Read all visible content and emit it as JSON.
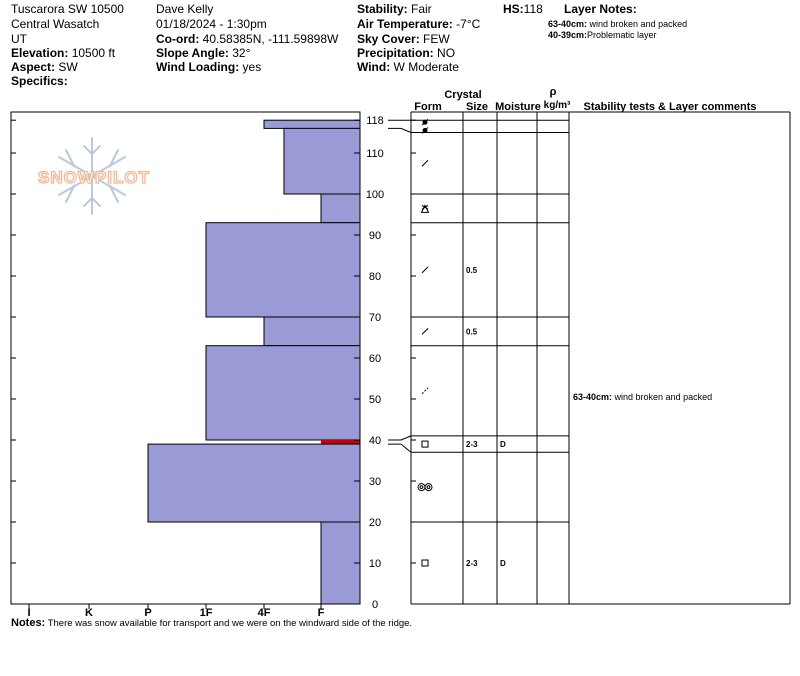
{
  "header": {
    "location": "Tuscarora SW 10500",
    "range": "Central Wasatch",
    "state": "UT",
    "elevation_label": "Elevation:",
    "elevation": " 10500 ft",
    "aspect_label": "Aspect:",
    "aspect": " SW",
    "specifics_label": "Specifics:",
    "observer": "Dave Kelly",
    "datetime": "01/18/2024 - 1:30pm",
    "coord_label": "Co-ord:",
    "coord": " 40.58385N, -111.59898W",
    "slope_label": "Slope Angle:",
    "slope": " 32°",
    "wind_loading_label": "Wind Loading:",
    "wind_loading": " yes",
    "stability_label": "Stability:",
    "stability": " Fair",
    "air_temp_label": "Air Temperature:",
    "air_temp": " -7°C",
    "sky_label": "Sky Cover:",
    "sky": " FEW",
    "precip_label": "Precipitation:",
    "precip": " NO",
    "wind_label": "Wind:",
    "wind": "  W Moderate",
    "hs_label": "HS:",
    "hs": "118",
    "layer_notes_label": "Layer Notes:",
    "layer_notes": [
      {
        "range": "63-40cm:",
        "text": " wind broken and packed"
      },
      {
        "range": "40-39cm:",
        "text": "Problematic layer"
      }
    ]
  },
  "logo": {
    "text": "SNOWPILOT"
  },
  "chart_data": {
    "type": "bar",
    "orientation": "horizontal",
    "y_axis_label": "",
    "ylim": [
      0,
      120
    ],
    "y_ticks": [
      0,
      10,
      20,
      30,
      40,
      50,
      60,
      70,
      80,
      90,
      100,
      110,
      118
    ],
    "hardness_scale": [
      "I",
      "K",
      "P",
      "1F",
      "4F",
      "F"
    ],
    "hardness_values": [
      6,
      5,
      4,
      3,
      2,
      1
    ],
    "hardness_layers": [
      {
        "bottom": 116,
        "top": 118,
        "hardness": 2.0
      },
      {
        "bottom": 100,
        "top": 116,
        "hardness": 1.65
      },
      {
        "bottom": 93,
        "top": 100,
        "hardness": 1.0
      },
      {
        "bottom": 70,
        "top": 93,
        "hardness": 3.0
      },
      {
        "bottom": 63,
        "top": 70,
        "hardness": 2.0
      },
      {
        "bottom": 40,
        "top": 63,
        "hardness": 3.0
      },
      {
        "bottom": 39,
        "top": 40,
        "hardness": 1.0,
        "problematic": true
      },
      {
        "bottom": 20,
        "top": 39,
        "hardness": 4.0
      },
      {
        "bottom": 0,
        "top": 20,
        "hardness": 1.0
      }
    ],
    "layer_boundaries": [
      0,
      20,
      37,
      41,
      63,
      70,
      93,
      100,
      115,
      118
    ],
    "boundary_marks": [
      {
        "depth": 118,
        "chart_depth": 118
      },
      {
        "depth": 115,
        "chart_depth": 116
      },
      {
        "depth": 41,
        "chart_depth": 40
      },
      {
        "depth": 37,
        "chart_depth": 39
      }
    ],
    "colors": {
      "bar": "#9a9ad6",
      "problem": "#cc0000"
    }
  },
  "table": {
    "columns": {
      "crystal": "Crystal",
      "form": "Form",
      "size": "Size",
      "moisture": "Moisture",
      "rho": "ρ",
      "density": "kg/m³",
      "comments": "Stability tests & Layer comments"
    },
    "rows": [
      {
        "depth": 117.5,
        "form_icon": "precipitation-particle-icon",
        "size": "",
        "moisture": ""
      },
      {
        "depth": 115.5,
        "form_icon": "precipitation-particle-icon",
        "size": "",
        "moisture": ""
      },
      {
        "depth": 107.5,
        "form_icon": "decomposing-fragment-icon",
        "size": "",
        "moisture": ""
      },
      {
        "depth": 96.5,
        "form_icon": "surface-hoar-icon",
        "size": "",
        "moisture": ""
      },
      {
        "depth": 81.5,
        "form_icon": "decomposing-fragment-icon",
        "size": "0.5",
        "moisture": ""
      },
      {
        "depth": 66.5,
        "form_icon": "decomposing-fragment-icon",
        "size": "0.5",
        "moisture": ""
      },
      {
        "depth": 52,
        "form_icon": "wind-packed-icon",
        "size": "",
        "moisture": ""
      },
      {
        "depth": 39,
        "form_icon": "faceted-crystal-icon",
        "size": "2-3",
        "moisture": "D"
      },
      {
        "depth": 28.5,
        "form_icon": "melt-freeze-icon",
        "size": "",
        "moisture": ""
      },
      {
        "depth": 10,
        "form_icon": "faceted-crystal-icon",
        "size": "2-3",
        "moisture": "D"
      }
    ],
    "comments": [
      {
        "depth": 51,
        "range": "63-40cm:",
        "text": " wind broken and packed"
      }
    ]
  },
  "notes": {
    "label": "Notes:",
    "text": " There was snow available for transport and we were on the windward side of the ridge."
  }
}
